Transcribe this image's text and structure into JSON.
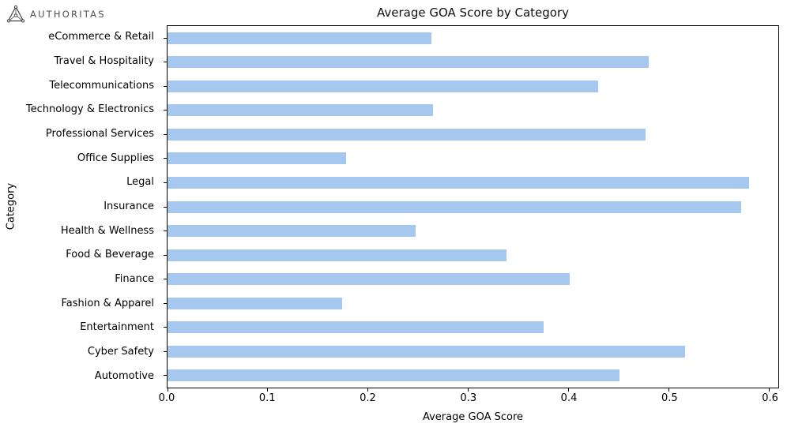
{
  "logo": {
    "text": "AUTHORITAS",
    "icon": "authoritas-triangle-network-icon",
    "color": "#4f4f4f"
  },
  "chart_data": {
    "type": "bar",
    "orientation": "horizontal",
    "title": "Average GOA Score by Category",
    "xlabel": "Average GOA Score",
    "ylabel": "Category",
    "categories": [
      "eCommerce & Retail",
      "Travel & Hospitality",
      "Telecommunications",
      "Technology & Electronics",
      "Professional Services",
      "Office Supplies",
      "Legal",
      "Insurance",
      "Health & Wellness",
      "Food & Beverage",
      "Finance",
      "Fashion & Apparel",
      "Entertainment",
      "Cyber Safety",
      "Automotive"
    ],
    "values": [
      0.263,
      0.48,
      0.429,
      0.265,
      0.477,
      0.178,
      0.58,
      0.572,
      0.247,
      0.338,
      0.401,
      0.174,
      0.375,
      0.516,
      0.451
    ],
    "xlim": [
      0,
      0.609
    ],
    "x_ticks": [
      0.0,
      0.1,
      0.2,
      0.3,
      0.4,
      0.5,
      0.6
    ],
    "x_tick_labels": [
      "0.0",
      "0.1",
      "0.2",
      "0.3",
      "0.4",
      "0.5",
      "0.6"
    ],
    "bar_color": "#a6c8ee",
    "spine_color": "#000000",
    "grid": false,
    "legend": null
  }
}
